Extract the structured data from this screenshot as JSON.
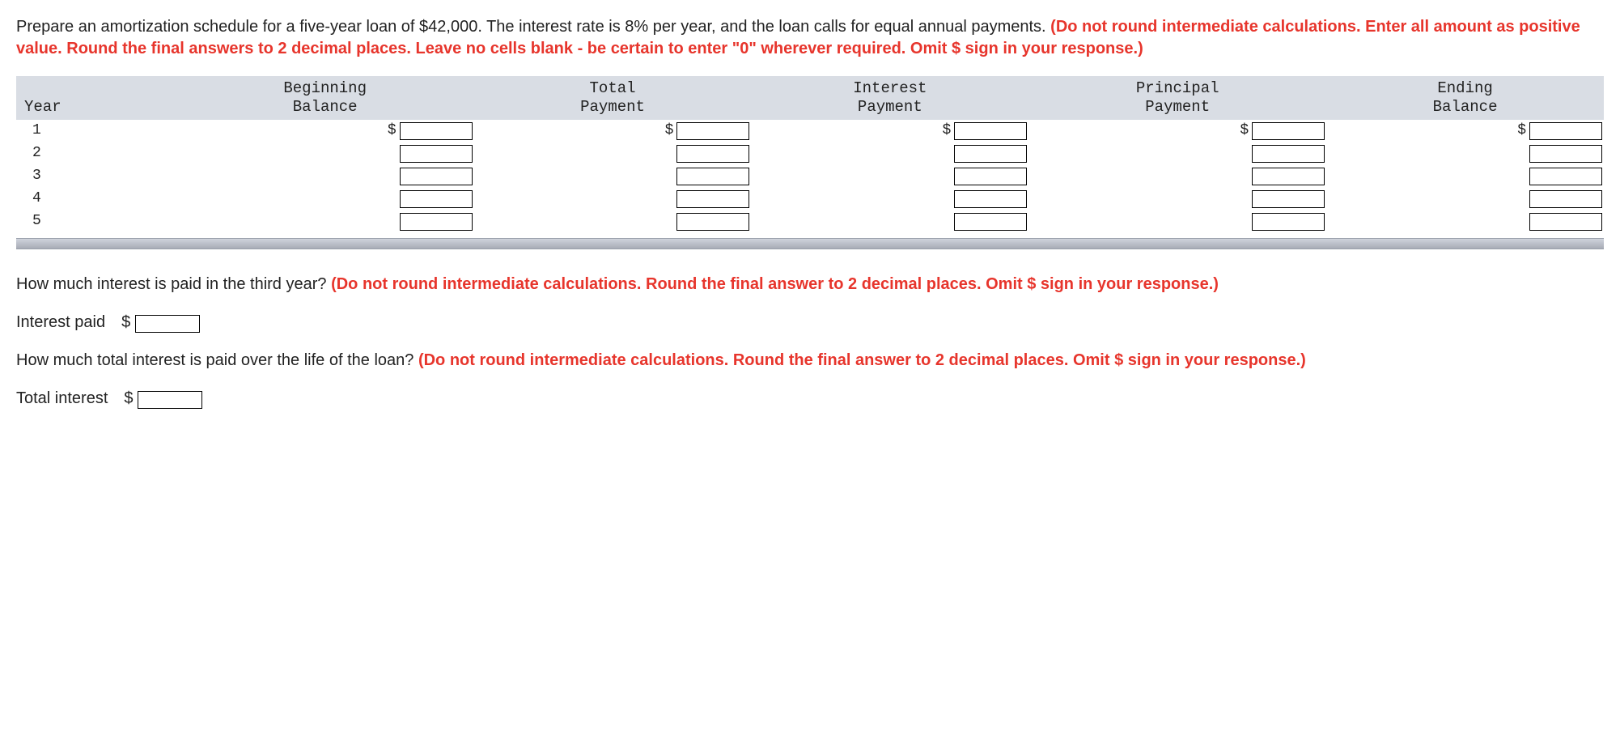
{
  "question1": {
    "part1": "Prepare an amortization schedule for a five-year loan of $42,000. The interest rate is 8% per year, and the loan calls for equal annual payments. ",
    "part2_red": "(Do not round intermediate calculations. Enter all amount as positive value. Round the final answers to 2 decimal places. Leave no cells blank - be certain to enter \"0\" wherever required. Omit $ sign in your response.)"
  },
  "table": {
    "headers": {
      "year": "Year",
      "beg": "Beginning\nBalance",
      "total": "Total\nPayment",
      "interest": "Interest\nPayment",
      "principal": "Principal\nPayment",
      "ending": "Ending\nBalance"
    },
    "rows": [
      {
        "year": "1",
        "dollar": true
      },
      {
        "year": "2",
        "dollar": false
      },
      {
        "year": "3",
        "dollar": false
      },
      {
        "year": "4",
        "dollar": false
      },
      {
        "year": "5",
        "dollar": false
      }
    ],
    "dollar_sign": "$"
  },
  "question2": {
    "part1": "How much interest is paid in the third year? ",
    "part2_red": "(Do not round intermediate calculations. Round the final answer to 2 decimal places. Omit $ sign in your response.)"
  },
  "interest_paid_label": "Interest paid",
  "question3": {
    "part1": "How much total interest is paid over the life of the loan? ",
    "part2_red": "(Do not round intermediate calculations. Round the final answer to 2 decimal places. Omit $ sign in your response.)"
  },
  "total_interest_label": "Total interest",
  "dollar": "$"
}
